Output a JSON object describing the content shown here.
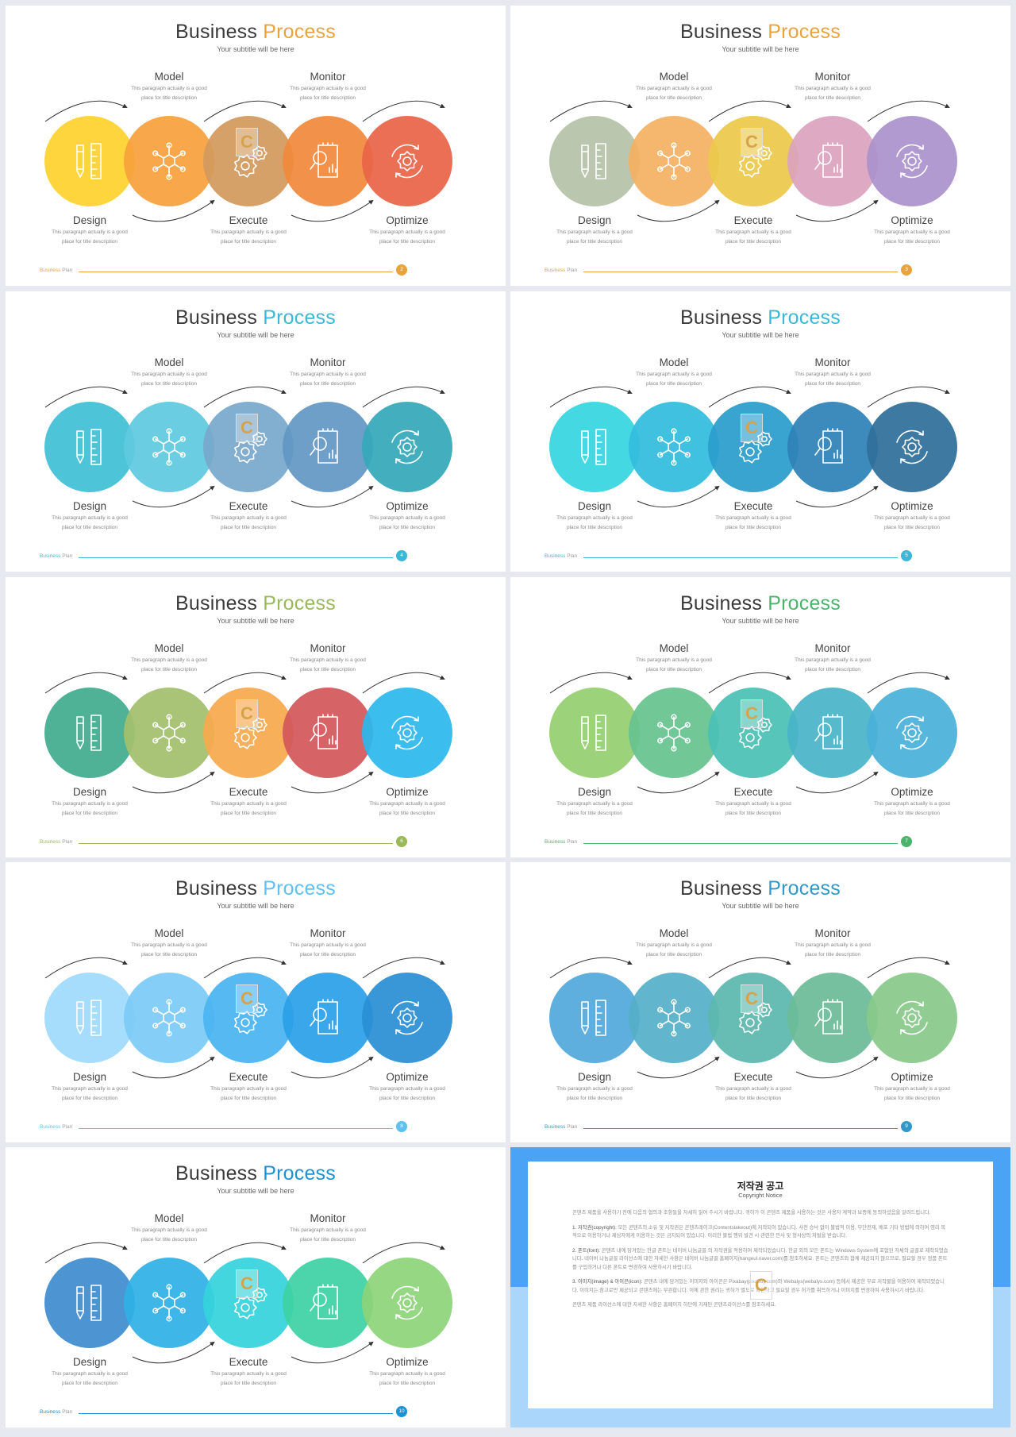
{
  "template": {
    "title_first": "Business",
    "title_second": "Process",
    "subtitle": "Your subtitle will be here",
    "steps": [
      {
        "name": "Design",
        "desc1": "This paragraph actually is a good",
        "desc2": "place for title description",
        "icon": "pencil-ruler-icon"
      },
      {
        "name": "Model",
        "desc1": "This paragraph actually is a good",
        "desc2": "place for title description",
        "icon": "network-hexagon-icon"
      },
      {
        "name": "Execute",
        "desc1": "This paragraph actually is a good",
        "desc2": "place for title description",
        "icon": "gears-icon"
      },
      {
        "name": "Monitor",
        "desc1": "This paragraph actually is a good",
        "desc2": "place for title description",
        "icon": "report-magnifier-icon"
      },
      {
        "name": "Optimize",
        "desc1": "This paragraph actually is a good",
        "desc2": "place for title description",
        "icon": "gear-cycle-icon"
      }
    ],
    "footer_brand_first": "Business",
    "footer_brand_second": "Plan",
    "logo_letter": "C"
  },
  "slides": [
    {
      "page": "2",
      "accent": "#e8a33d",
      "colors": [
        "#ffd22e",
        "#f7a13c",
        "#d29a5e",
        "#f18a3c",
        "#ea6448"
      ]
    },
    {
      "page": "3",
      "accent": "#e8a33d",
      "colors": [
        "#b6c2a8",
        "#f4b062",
        "#ecc94b",
        "#dba3be",
        "#ab92cb"
      ]
    },
    {
      "page": "4",
      "accent": "#3ab8d6",
      "colors": [
        "#3fbfd4",
        "#60c9e0",
        "#78a8cc",
        "#6398c4",
        "#35a9b9"
      ]
    },
    {
      "page": "5",
      "accent": "#3ab8d6",
      "colors": [
        "#36d5e0",
        "#32bcdd",
        "#2b9dce",
        "#2e82b8",
        "#2f6f9a"
      ]
    },
    {
      "page": "6",
      "accent": "#9ab95a",
      "colors": [
        "#42ac8e",
        "#a2c06d",
        "#f6a94e",
        "#d3585a",
        "#2cb8ec"
      ]
    },
    {
      "page": "7",
      "accent": "#4cb36d",
      "colors": [
        "#94cf70",
        "#67c38f",
        "#4ac1b5",
        "#49b4c8",
        "#4ab0d9"
      ]
    },
    {
      "page": "8",
      "accent": "#5ec1f0",
      "colors": [
        "#9fd9fc",
        "#7ccaf6",
        "#4ab4f1",
        "#2aa0e8",
        "#2a8fd4"
      ]
    },
    {
      "page": "9",
      "accent": "#3198c8",
      "colors": [
        "#52a9dc",
        "#55afc8",
        "#5bb8ae",
        "#6cbb98",
        "#89c98a"
      ]
    },
    {
      "page": "10",
      "accent": "#1b93d3",
      "colors": [
        "#3e8ccf",
        "#2fb2e6",
        "#35d3dc",
        "#3ed2a5",
        "#8dd47a"
      ]
    }
  ],
  "copyright": {
    "title": "저작권 공고",
    "subtitle": "Copyright Notice",
    "intro": "콘텐츠 제품을 사용하기 전에 다음의 협의과 조항들을 자세히 읽어 주시기 바랍니다. 귀하가 이 콘텐츠 제품을 사용하는 것은 사용자 계약과 보증에 동의하셨음을 알려드립니다.",
    "p1_head": "1. 저작권(copyright):",
    "p1_body": "모든 콘텐츠의 소유 및 저작권은 콘텐츠레이크(Contentslakeout)에 저작되어 있습니다. 사전 승낙 없이 불법적 이용, 무단전재, 배포 기타 방법에 의하여 영리 목적으로 이용하거나 제삼자에게 이용하는 것은 금지되어 있습니다. 이러한 불법 행위 발견 시 관련한 민사 및 형사상의 처벌을 받습니다.",
    "p2_head": "2. 폰트(font):",
    "p2_body": "콘텐츠 내에 담겨있는 한글 폰트는 네이버 나눔글꼴 의 저작권을 적용하여 제작되었습니다. 한글 외의 모든 폰트는 Windows System에 포함된 자체의 글꼴로 제작되었습니다. 네이버 나눔글꼴 라이선스에 대한 자세한 사항은 네이버 나눔글꼴 홈페이지(hangeul.naver.com)를 참조하세요. 폰트는 콘텐츠와 함께 제공되지 않으므로, 필요할 경우 정품 폰트를 구입하거나 다른 폰트로 변경하여 사용하시기 바랍니다.",
    "p3_head": "3. 이미지(image) & 아이콘(icon):",
    "p3_body": "콘텐츠 내에 담겨있는 이미지와 아이콘은 Pixabay(pixabay.com)와 Webalys(webalys.com) 등에서 제공한 무료 저작물을 이용하여 제작되었습니다. 이미지는 참고로만 제공되고 콘텐츠에는 무관합니다. 이에 관한 권리는 귀하가 별도로 확인하고 필요할 경우 허가를 취득하거나 이미지를 변경하여 사용하시기 바랍니다.",
    "outro": "콘텐츠 제품 라이선스에 대한 자세한 사항은 홈페이지 하단에 기재된 콘텐츠라이선스를 참조하세요."
  }
}
